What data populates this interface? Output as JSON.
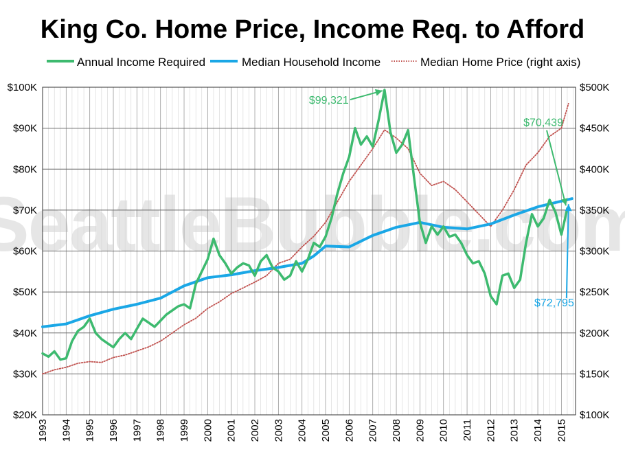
{
  "chart_data": {
    "type": "line",
    "title": "King Co. Home Price, Income Req. to Afford",
    "watermark": "SeattleBubble.com",
    "x_categories": [
      "1993",
      "1994",
      "1995",
      "1996",
      "1997",
      "1998",
      "1999",
      "2000",
      "2001",
      "2002",
      "2003",
      "2004",
      "2005",
      "2006",
      "2007",
      "2008",
      "2009",
      "2010",
      "2011",
      "2012",
      "2013",
      "2014",
      "2015"
    ],
    "y_left_ticks": [
      "$20K",
      "$30K",
      "$40K",
      "$50K",
      "$60K",
      "$70K",
      "$80K",
      "$90K",
      "$100K"
    ],
    "y_right_ticks": [
      "$100K",
      "$150K",
      "$200K",
      "$250K",
      "$300K",
      "$350K",
      "$400K",
      "$450K",
      "$500K"
    ],
    "ylim_left": [
      20000,
      100000
    ],
    "ylim_right": [
      100000,
      500000
    ],
    "grid": true,
    "legend_position": "top",
    "colors": {
      "income_required": "#3dba6f",
      "household_income": "#1aa7e6",
      "home_price": "#c0504d",
      "grid": "#aaaaaa",
      "watermark": "#e6e6e6"
    },
    "series": [
      {
        "name": "Annual Income Required",
        "axis": "left",
        "style": "solid",
        "points": [
          [
            1993.0,
            35000
          ],
          [
            1993.25,
            34200
          ],
          [
            1993.5,
            35500
          ],
          [
            1993.75,
            33500
          ],
          [
            1994.0,
            33800
          ],
          [
            1994.25,
            38000
          ],
          [
            1994.5,
            40500
          ],
          [
            1994.75,
            41500
          ],
          [
            1995.0,
            43500
          ],
          [
            1995.25,
            40000
          ],
          [
            1995.5,
            38500
          ],
          [
            1995.75,
            37500
          ],
          [
            1996.0,
            36500
          ],
          [
            1996.25,
            38500
          ],
          [
            1996.5,
            40000
          ],
          [
            1996.75,
            38500
          ],
          [
            1997.0,
            41000
          ],
          [
            1997.25,
            43500
          ],
          [
            1997.5,
            42500
          ],
          [
            1997.75,
            41500
          ],
          [
            1998.0,
            43000
          ],
          [
            1998.25,
            44500
          ],
          [
            1998.5,
            45500
          ],
          [
            1998.75,
            46500
          ],
          [
            1999.0,
            47000
          ],
          [
            1999.25,
            46000
          ],
          [
            1999.5,
            52000
          ],
          [
            1999.75,
            55000
          ],
          [
            2000.0,
            58000
          ],
          [
            2000.25,
            63000
          ],
          [
            2000.5,
            59000
          ],
          [
            2000.75,
            57000
          ],
          [
            2001.0,
            54500
          ],
          [
            2001.25,
            56000
          ],
          [
            2001.5,
            57000
          ],
          [
            2001.75,
            56500
          ],
          [
            2002.0,
            54000
          ],
          [
            2002.25,
            57500
          ],
          [
            2002.5,
            59000
          ],
          [
            2002.75,
            56000
          ],
          [
            2003.0,
            55000
          ],
          [
            2003.25,
            53000
          ],
          [
            2003.5,
            54000
          ],
          [
            2003.75,
            57500
          ],
          [
            2004.0,
            55000
          ],
          [
            2004.25,
            58000
          ],
          [
            2004.5,
            62000
          ],
          [
            2004.75,
            61000
          ],
          [
            2005.0,
            63500
          ],
          [
            2005.25,
            68000
          ],
          [
            2005.5,
            74000
          ],
          [
            2005.75,
            79000
          ],
          [
            2006.0,
            83000
          ],
          [
            2006.25,
            90000
          ],
          [
            2006.5,
            86000
          ],
          [
            2006.75,
            88000
          ],
          [
            2007.0,
            85500
          ],
          [
            2007.25,
            92000
          ],
          [
            2007.5,
            99321
          ],
          [
            2007.75,
            89000
          ],
          [
            2008.0,
            84000
          ],
          [
            2008.25,
            86000
          ],
          [
            2008.5,
            89500
          ],
          [
            2008.75,
            78000
          ],
          [
            2009.0,
            67000
          ],
          [
            2009.25,
            62000
          ],
          [
            2009.5,
            66000
          ],
          [
            2009.75,
            64000
          ],
          [
            2010.0,
            66000
          ],
          [
            2010.25,
            63500
          ],
          [
            2010.5,
            64000
          ],
          [
            2010.75,
            62000
          ],
          [
            2011.0,
            59000
          ],
          [
            2011.25,
            57000
          ],
          [
            2011.5,
            57500
          ],
          [
            2011.75,
            54500
          ],
          [
            2012.0,
            49000
          ],
          [
            2012.25,
            47000
          ],
          [
            2012.5,
            54000
          ],
          [
            2012.75,
            54500
          ],
          [
            2013.0,
            51000
          ],
          [
            2013.25,
            53000
          ],
          [
            2013.5,
            62000
          ],
          [
            2013.75,
            69000
          ],
          [
            2014.0,
            66000
          ],
          [
            2014.25,
            68000
          ],
          [
            2014.5,
            72500
          ],
          [
            2014.75,
            69500
          ],
          [
            2015.0,
            64000
          ],
          [
            2015.25,
            70439
          ]
        ]
      },
      {
        "name": "Median Household Income",
        "axis": "left",
        "style": "solid",
        "points": [
          [
            1993.0,
            41500
          ],
          [
            1994.0,
            42200
          ],
          [
            1995.0,
            44200
          ],
          [
            1996.0,
            45800
          ],
          [
            1997.0,
            47000
          ],
          [
            1998.0,
            48500
          ],
          [
            1999.0,
            51500
          ],
          [
            2000.0,
            53500
          ],
          [
            2001.0,
            54200
          ],
          [
            2002.0,
            55200
          ],
          [
            2003.0,
            56000
          ],
          [
            2004.0,
            57000
          ],
          [
            2004.5,
            58800
          ],
          [
            2005.0,
            61200
          ],
          [
            2006.0,
            61000
          ],
          [
            2007.0,
            63800
          ],
          [
            2008.0,
            65800
          ],
          [
            2009.0,
            67000
          ],
          [
            2010.0,
            65800
          ],
          [
            2011.0,
            65400
          ],
          [
            2012.0,
            66600
          ],
          [
            2013.0,
            68800
          ],
          [
            2014.0,
            70800
          ],
          [
            2015.45,
            72795
          ]
        ]
      },
      {
        "name": "Median Home Price (right axis)",
        "axis": "right",
        "style": "dotted",
        "points": [
          [
            1993.0,
            150000
          ],
          [
            1993.5,
            155000
          ],
          [
            1994.0,
            158000
          ],
          [
            1994.5,
            163000
          ],
          [
            1995.0,
            165000
          ],
          [
            1995.5,
            164000
          ],
          [
            1996.0,
            170000
          ],
          [
            1996.5,
            173000
          ],
          [
            1997.0,
            178000
          ],
          [
            1997.5,
            183000
          ],
          [
            1998.0,
            190000
          ],
          [
            1998.5,
            200000
          ],
          [
            1999.0,
            210000
          ],
          [
            1999.5,
            218000
          ],
          [
            2000.0,
            230000
          ],
          [
            2000.5,
            238000
          ],
          [
            2001.0,
            248000
          ],
          [
            2001.5,
            255000
          ],
          [
            2002.0,
            262000
          ],
          [
            2002.5,
            270000
          ],
          [
            2003.0,
            285000
          ],
          [
            2003.5,
            290000
          ],
          [
            2004.0,
            305000
          ],
          [
            2004.5,
            318000
          ],
          [
            2005.0,
            335000
          ],
          [
            2005.5,
            360000
          ],
          [
            2006.0,
            385000
          ],
          [
            2006.5,
            405000
          ],
          [
            2007.0,
            425000
          ],
          [
            2007.5,
            448000
          ],
          [
            2008.0,
            438000
          ],
          [
            2008.5,
            425000
          ],
          [
            2009.0,
            395000
          ],
          [
            2009.5,
            380000
          ],
          [
            2010.0,
            385000
          ],
          [
            2010.5,
            375000
          ],
          [
            2011.0,
            360000
          ],
          [
            2011.5,
            345000
          ],
          [
            2012.0,
            330000
          ],
          [
            2012.5,
            350000
          ],
          [
            2013.0,
            375000
          ],
          [
            2013.5,
            405000
          ],
          [
            2014.0,
            420000
          ],
          [
            2014.5,
            440000
          ],
          [
            2015.0,
            450000
          ],
          [
            2015.3,
            480000
          ]
        ]
      }
    ],
    "annotations": [
      {
        "text": "$99,321",
        "series": "Annual Income Required",
        "x": 2007.5,
        "y": 99321
      },
      {
        "text": "$70,439",
        "series": "Annual Income Required",
        "x": 2015.25,
        "y": 70439
      },
      {
        "text": "$72,795",
        "series": "Median Household Income",
        "x": 2015.45,
        "y": 72795
      }
    ]
  }
}
